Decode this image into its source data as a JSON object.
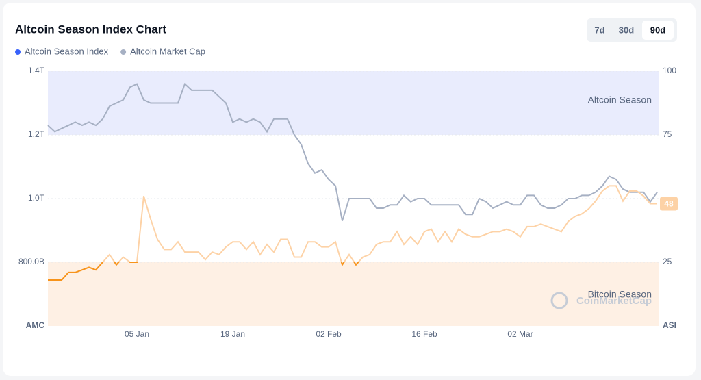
{
  "chart_data": {
    "type": "line",
    "title": "Altcoin Season Index Chart",
    "range_buttons": [
      "7d",
      "30d",
      "90d"
    ],
    "active_range": 2,
    "y_label": "AMC",
    "y2_label": "ASI",
    "categories": [
      null,
      null,
      null,
      null,
      null,
      null,
      null,
      null,
      null,
      null,
      null,
      null,
      null,
      "05 Jan",
      null,
      null,
      null,
      null,
      null,
      null,
      null,
      null,
      null,
      null,
      null,
      null,
      null,
      "19 Jan",
      null,
      null,
      null,
      null,
      null,
      null,
      null,
      null,
      null,
      null,
      null,
      null,
      null,
      "02 Feb",
      null,
      null,
      null,
      null,
      null,
      null,
      null,
      null,
      null,
      null,
      null,
      null,
      null,
      "16 Feb",
      null,
      null,
      null,
      null,
      null,
      null,
      null,
      null,
      null,
      null,
      null,
      null,
      null,
      "02 Mar",
      null,
      null,
      null,
      null,
      null,
      null,
      null,
      null,
      null,
      null,
      null,
      null,
      null,
      null,
      null,
      null,
      null,
      null,
      null,
      null
    ],
    "series": [
      {
        "name": "Altcoin Season Index",
        "color": "#3861fb",
        "line_color": "#f7931a",
        "faded_color": "#fdd2a6",
        "axis": "y2",
        "values": [
          18,
          18,
          18,
          21,
          21,
          22,
          23,
          22,
          25,
          28,
          24,
          27,
          25,
          25,
          51,
          42,
          34,
          30,
          30,
          33,
          29,
          29,
          29,
          26,
          29,
          28,
          31,
          33,
          33,
          30,
          33,
          28,
          32,
          29,
          34,
          34,
          27,
          27,
          33,
          33,
          31,
          31,
          33,
          24,
          28,
          24,
          27,
          28,
          32,
          33,
          33,
          37,
          32,
          35,
          32,
          37,
          38,
          33,
          37,
          33,
          38,
          36,
          35,
          35,
          36,
          37,
          37,
          38,
          37,
          35,
          39,
          39,
          40,
          39,
          38,
          37,
          41,
          43,
          44,
          46,
          49,
          53,
          55,
          55,
          49,
          53,
          53,
          51,
          48,
          48
        ]
      },
      {
        "name": "Altcoin Market Cap",
        "color": "#a6b0c3",
        "line_color": "#a6b0c3",
        "values": [
          1.23,
          1.21,
          1.22,
          1.23,
          1.24,
          1.23,
          1.24,
          1.23,
          1.25,
          1.29,
          1.3,
          1.31,
          1.35,
          1.36,
          1.31,
          1.3,
          1.3,
          1.3,
          1.3,
          1.3,
          1.36,
          1.34,
          1.34,
          1.34,
          1.34,
          1.32,
          1.3,
          1.24,
          1.25,
          1.24,
          1.25,
          1.24,
          1.21,
          1.25,
          1.25,
          1.25,
          1.2,
          1.17,
          1.11,
          1.08,
          1.09,
          1.06,
          1.04,
          0.93,
          1.0,
          1.0,
          1.0,
          1.0,
          0.97,
          0.97,
          0.98,
          0.98,
          1.01,
          0.99,
          1.0,
          1.0,
          0.98,
          0.98,
          0.98,
          0.98,
          0.98,
          0.95,
          0.95,
          1.0,
          0.99,
          0.97,
          0.98,
          0.99,
          0.98,
          0.98,
          1.01,
          1.01,
          0.98,
          0.97,
          0.97,
          0.98,
          1.0,
          1.0,
          1.01,
          1.01,
          1.02,
          1.04,
          1.07,
          1.06,
          1.03,
          1.02,
          1.02,
          1.02,
          0.99,
          1.02
        ]
      }
    ],
    "ylim": [
      0.6,
      1.4
    ],
    "yticks": [
      {
        "value": 1.4,
        "label": "1.4T"
      },
      {
        "value": 1.2,
        "label": "1.2T"
      },
      {
        "value": 1.0,
        "label": "1.0T"
      },
      {
        "value": 0.8,
        "label": "800.0B"
      }
    ],
    "y2lim": [
      0,
      100
    ],
    "y2ticks": [
      100,
      75,
      25
    ],
    "bands": [
      {
        "label": "Altcoin Season",
        "range": [
          75,
          100
        ],
        "color": "#e9ecfd"
      },
      {
        "label": "Bitcoin Season",
        "range": [
          0,
          25
        ],
        "color": "#fef0e4"
      }
    ],
    "watermark": "CoinMarketCap",
    "grid": true
  }
}
